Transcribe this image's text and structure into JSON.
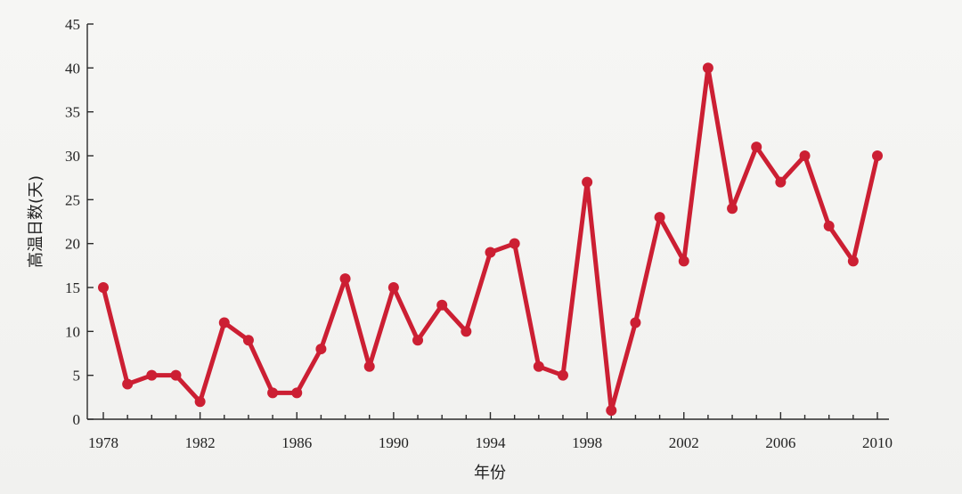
{
  "chart_data": {
    "type": "line",
    "title": "",
    "xlabel": "年份",
    "ylabel": "高温日数(天)",
    "xlim": [
      1978,
      2010
    ],
    "ylim": [
      0,
      45
    ],
    "x_ticks": [
      1978,
      1982,
      1986,
      1990,
      1994,
      1998,
      2002,
      2006,
      2010
    ],
    "y_ticks": [
      0,
      5,
      10,
      15,
      20,
      25,
      30,
      35,
      40,
      45
    ],
    "grid": false,
    "legend": "none",
    "color": "#cc1f33",
    "x": [
      1978,
      1979,
      1980,
      1981,
      1982,
      1983,
      1984,
      1985,
      1986,
      1987,
      1988,
      1989,
      1990,
      1991,
      1992,
      1993,
      1994,
      1995,
      1996,
      1997,
      1998,
      1999,
      2000,
      2001,
      2002,
      2003,
      2004,
      2005,
      2006,
      2007,
      2008,
      2009,
      2010
    ],
    "y": [
      15,
      4,
      5,
      5,
      2,
      11,
      9,
      3,
      3,
      8,
      16,
      6,
      15,
      9,
      13,
      10,
      19,
      20,
      6,
      5,
      27,
      1,
      11,
      23,
      18,
      40,
      24,
      31,
      27,
      30,
      22,
      18,
      30
    ]
  }
}
